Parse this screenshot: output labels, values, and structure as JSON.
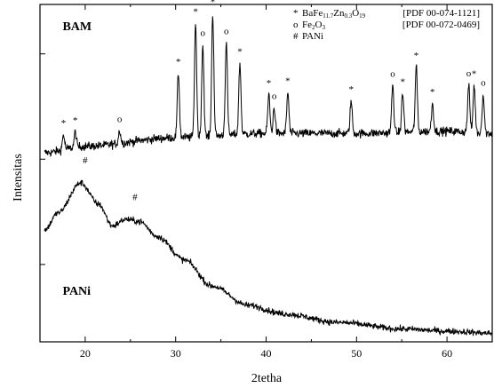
{
  "chart_data": {
    "type": "line",
    "xlabel": "2tetha",
    "ylabel": "Intensitas",
    "xlim": [
      15,
      65
    ],
    "x_ticks": [
      20,
      30,
      40,
      50,
      60
    ],
    "y_ticks_visible": false,
    "grid": false,
    "legend": {
      "placement": "top-right",
      "entries": [
        {
          "symbol": "*",
          "parts": [
            {
              "text": "BaFe",
              "sub": false
            },
            {
              "text": "11.7",
              "sub": true
            },
            {
              "text": "Zn",
              "sub": false
            },
            {
              "text": "0.3",
              "sub": true
            },
            {
              "text": "O",
              "sub": false
            },
            {
              "text": "19",
              "sub": true
            }
          ],
          "ref": "[PDF 00-074-1121]"
        },
        {
          "symbol": "o",
          "parts": [
            {
              "text": "Fe",
              "sub": false
            },
            {
              "text": "2",
              "sub": true
            },
            {
              "text": "O",
              "sub": false
            },
            {
              "text": "3",
              "sub": true
            }
          ],
          "ref": "[PDF 00-072-0469]"
        },
        {
          "symbol": "#",
          "parts": [
            {
              "text": "PANi",
              "sub": false
            }
          ],
          "ref": ""
        }
      ]
    },
    "series": [
      {
        "name": "BAM",
        "label_position": [
          17.5,
          0.93
        ],
        "baseline": [
          [
            15.5,
            0.36
          ],
          [
            20,
            0.39
          ],
          [
            30,
            0.43
          ],
          [
            40,
            0.45
          ],
          [
            50,
            0.45
          ],
          [
            60,
            0.46
          ],
          [
            65,
            0.45
          ]
        ],
        "noise": 0.035,
        "peaks": [
          {
            "x": 17.6,
            "height": 0.07,
            "marker": "*"
          },
          {
            "x": 18.9,
            "height": 0.07,
            "marker": "*"
          },
          {
            "x": 23.8,
            "height": 0.06,
            "marker": "o"
          },
          {
            "x": 30.3,
            "height": 0.3,
            "marker": "*"
          },
          {
            "x": 32.2,
            "height": 0.53,
            "marker": "*"
          },
          {
            "x": 33.0,
            "height": 0.43,
            "marker": "o"
          },
          {
            "x": 34.1,
            "height": 0.57,
            "marker": "*"
          },
          {
            "x": 35.6,
            "height": 0.43,
            "marker": "o"
          },
          {
            "x": 37.1,
            "height": 0.33,
            "marker": "*"
          },
          {
            "x": 40.3,
            "height": 0.18,
            "marker": "*"
          },
          {
            "x": 40.9,
            "height": 0.12,
            "marker": "o"
          },
          {
            "x": 42.4,
            "height": 0.19,
            "marker": "*"
          },
          {
            "x": 49.4,
            "height": 0.15,
            "marker": "*"
          },
          {
            "x": 54.0,
            "height": 0.22,
            "marker": "o"
          },
          {
            "x": 55.1,
            "height": 0.18,
            "marker": "*"
          },
          {
            "x": 56.6,
            "height": 0.3,
            "marker": "*"
          },
          {
            "x": 58.4,
            "height": 0.13,
            "marker": "*"
          },
          {
            "x": 62.4,
            "height": 0.22,
            "marker": "o"
          },
          {
            "x": 63.0,
            "height": 0.22,
            "marker": "*"
          },
          {
            "x": 64.0,
            "height": 0.18,
            "marker": "o"
          }
        ]
      },
      {
        "name": "PANi",
        "label_position": [
          17.5,
          -0.3
        ],
        "baseline": [
          [
            15.5,
            0.0
          ],
          [
            17,
            0.08
          ],
          [
            19.5,
            0.22
          ],
          [
            21.5,
            0.12
          ],
          [
            23,
            0.02
          ],
          [
            24.5,
            0.05
          ],
          [
            26,
            0.04
          ],
          [
            28,
            -0.03
          ],
          [
            31,
            -0.14
          ],
          [
            34,
            -0.26
          ],
          [
            38,
            -0.35
          ],
          [
            42,
            -0.39
          ],
          [
            48,
            -0.43
          ],
          [
            55,
            -0.46
          ],
          [
            60,
            -0.47
          ],
          [
            65,
            -0.48
          ]
        ],
        "noise": 0.025,
        "peaks": [
          {
            "x": 20.0,
            "height": 0.0,
            "marker": "#",
            "marker_y": 0.31
          },
          {
            "x": 25.5,
            "height": 0.0,
            "marker": "#",
            "marker_y": 0.14
          }
        ]
      }
    ]
  }
}
